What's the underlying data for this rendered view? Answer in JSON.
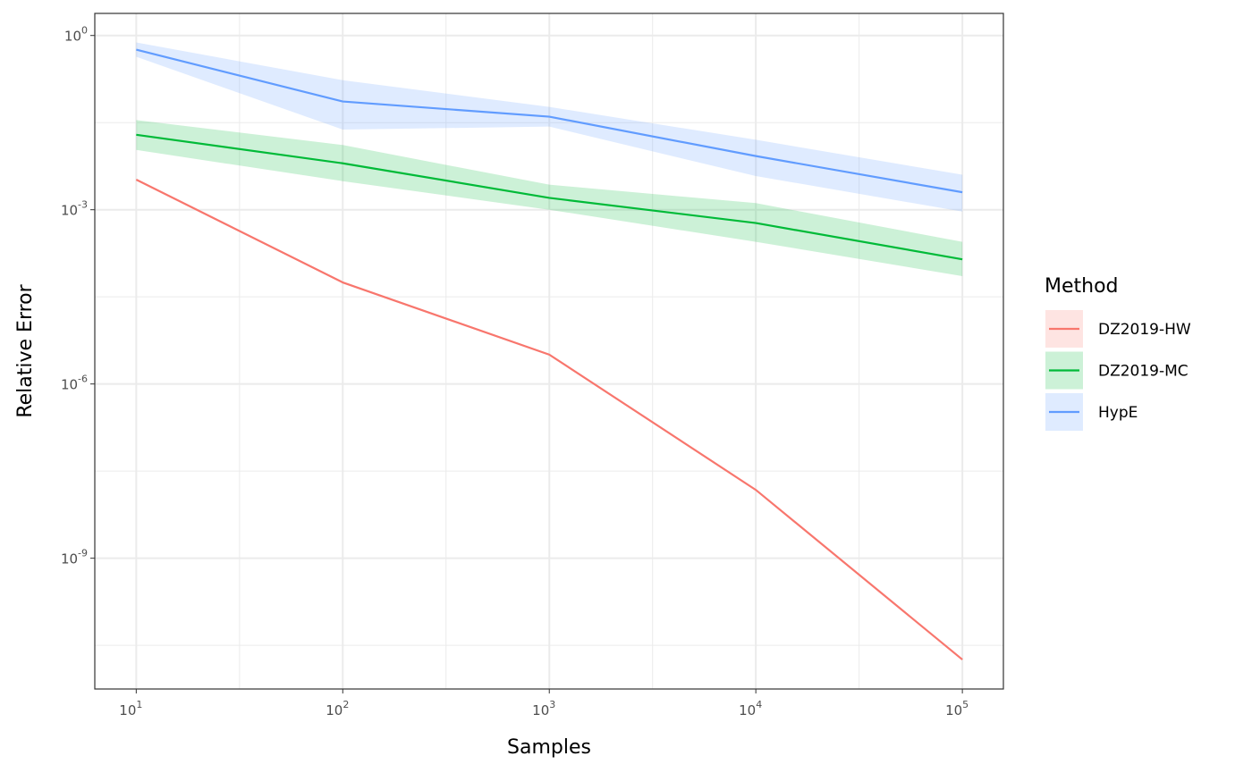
{
  "chart_data": {
    "type": "line",
    "title": "",
    "xlabel": "Samples",
    "ylabel": "Relative Error",
    "xscale": "log10",
    "yscale": "log10",
    "xlim": [
      6.3,
      158000
    ],
    "ylim": [
      5.6e-12,
      2.4
    ],
    "grid": true,
    "x": [
      10,
      100,
      1000,
      10000,
      100000
    ],
    "x_ticks": [
      {
        "base": "10",
        "exp": "1"
      },
      {
        "base": "10",
        "exp": "2"
      },
      {
        "base": "10",
        "exp": "3"
      },
      {
        "base": "10",
        "exp": "4"
      },
      {
        "base": "10",
        "exp": "5"
      }
    ],
    "y_ticks": [
      {
        "base": "10",
        "exp": "0"
      },
      {
        "base": "10",
        "exp": "-3"
      },
      {
        "base": "10",
        "exp": "-6"
      },
      {
        "base": "10",
        "exp": "-9"
      }
    ],
    "legend": {
      "title": "Method",
      "position": "right"
    },
    "series": [
      {
        "name": "DZ2019-HW",
        "color": "#F8766D",
        "values": [
          0.0033,
          5.6e-05,
          3.2e-06,
          1.5e-08,
          1.8e-11
        ],
        "lower": null,
        "upper": null
      },
      {
        "name": "DZ2019-MC",
        "color": "#00BA38",
        "values": [
          0.0195,
          0.0063,
          0.0016,
          0.00059,
          0.00014
        ],
        "lower": [
          0.0107,
          0.0031,
          0.001,
          0.00028,
          7.2e-05
        ],
        "upper": [
          0.035,
          0.013,
          0.0027,
          0.0013,
          0.00028
        ]
      },
      {
        "name": "HypE",
        "color": "#619CFF",
        "values": [
          0.57,
          0.073,
          0.04,
          0.0084,
          0.002
        ],
        "lower": [
          0.43,
          0.024,
          0.027,
          0.0038,
          0.00093
        ],
        "upper": [
          0.76,
          0.17,
          0.059,
          0.016,
          0.004
        ]
      }
    ]
  }
}
